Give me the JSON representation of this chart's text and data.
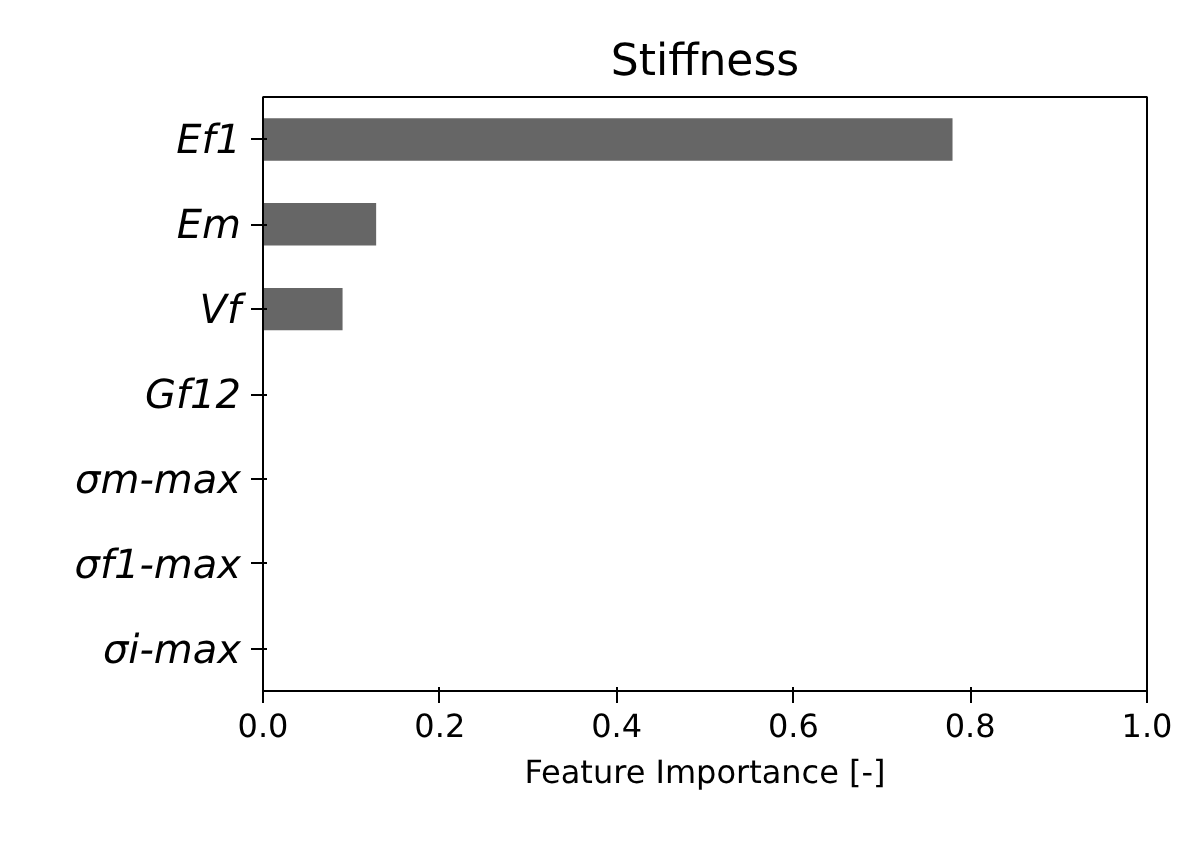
{
  "chart_data": {
    "type": "bar",
    "orientation": "horizontal",
    "title": "Stiffness",
    "xlabel": "Feature Importance [-]",
    "categories": [
      "Ef1",
      "Em",
      "Vf",
      "Gf12",
      "σm-max",
      "σf1-max",
      "σi-max"
    ],
    "values": [
      0.78,
      0.128,
      0.09,
      0,
      0,
      0,
      0
    ],
    "color": "#666666",
    "xlim": [
      0,
      1.0
    ],
    "xticks": [
      {
        "value": 0,
        "label": "0.0"
      },
      {
        "value": 0.2,
        "label": "0.2"
      },
      {
        "value": 0.4,
        "label": "0.4"
      },
      {
        "value": 0.6,
        "label": "0.6"
      },
      {
        "value": 0.8,
        "label": "0.8"
      },
      {
        "value": 1.0,
        "label": "1.0"
      }
    ],
    "grid": false
  }
}
